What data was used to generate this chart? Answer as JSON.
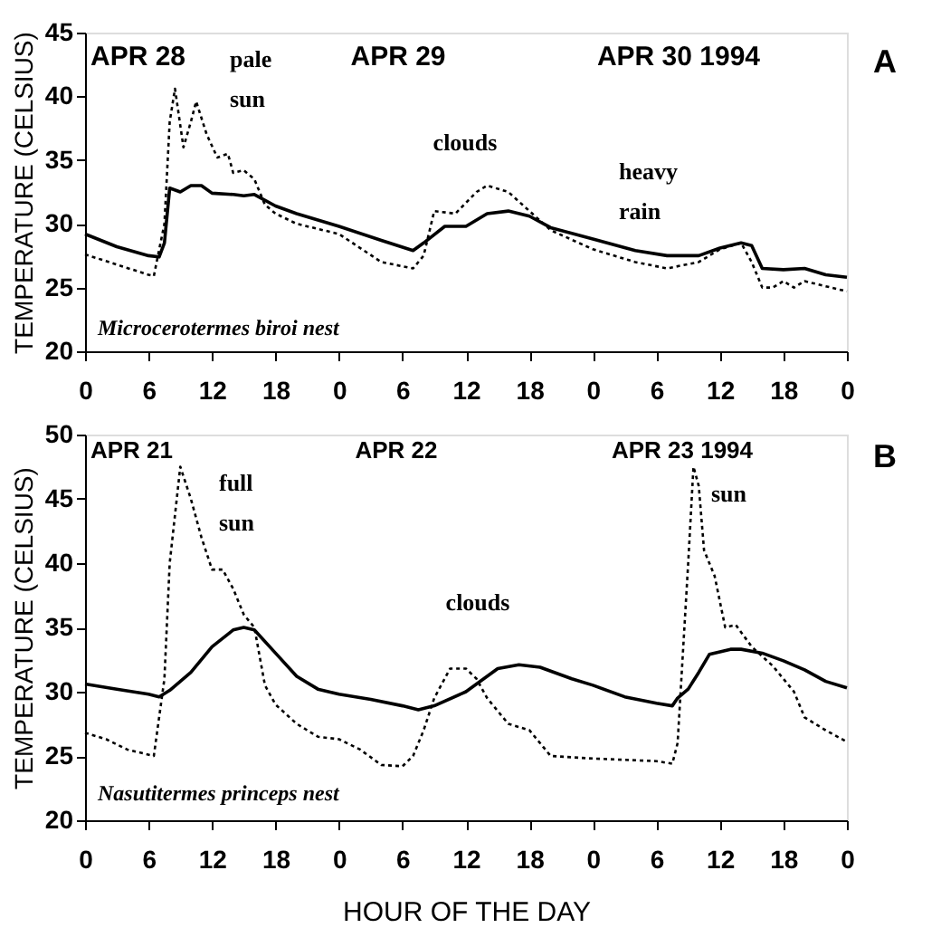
{
  "chart_data": [
    {
      "type": "line",
      "ylabel": "TEMPERATURE (CELSIUS)",
      "xlim": [
        "1994-04-28T00:00",
        "1994-05-01T00:00"
      ],
      "ylim": [
        20,
        45
      ],
      "xticks": [
        {
          "value": "1994-04-28T00:00",
          "label": "0"
        },
        {
          "value": "1994-04-28T06:00",
          "label": "6"
        },
        {
          "value": "1994-04-28T12:00",
          "label": "12"
        },
        {
          "value": "1994-04-28T18:00",
          "label": "18"
        },
        {
          "value": "1994-04-29T00:00",
          "label": "0"
        },
        {
          "value": "1994-04-29T06:00",
          "label": "6"
        },
        {
          "value": "1994-04-29T12:00",
          "label": "12"
        },
        {
          "value": "1994-04-29T18:00",
          "label": "18"
        },
        {
          "value": "1994-04-30T00:00",
          "label": "0"
        },
        {
          "value": "1994-04-30T06:00",
          "label": "6"
        },
        {
          "value": "1994-04-30T12:00",
          "label": "12"
        },
        {
          "value": "1994-04-30T18:00",
          "label": "18"
        },
        {
          "value": "1994-05-01T00:00",
          "label": "0"
        }
      ],
      "yticks": [
        20,
        25,
        30,
        35,
        40,
        45
      ],
      "grid": false,
      "legend": false,
      "marker": "none",
      "annotations": [
        "APR 28",
        "APR 29",
        "APR 30 1994",
        "pale sun",
        "clouds",
        "heavy rain",
        "Microcerotermes biroi nest",
        "A"
      ],
      "series": [
        {
          "color": "#000000",
          "line_style": "solid",
          "x": [
            "1994-04-28T00:00",
            "1994-04-28T03:00",
            "1994-04-28T06:00",
            "1994-04-28T07:00",
            "1994-04-28T07:30",
            "1994-04-28T08:00",
            "1994-04-28T09:00",
            "1994-04-28T10:00",
            "1994-04-28T11:00",
            "1994-04-28T12:00",
            "1994-04-28T14:00",
            "1994-04-28T15:00",
            "1994-04-28T16:00",
            "1994-04-28T18:00",
            "1994-04-28T20:00",
            "1994-04-29T00:00",
            "1994-04-29T04:00",
            "1994-04-29T07:00",
            "1994-04-29T08:00",
            "1994-04-29T10:00",
            "1994-04-29T12:00",
            "1994-04-29T14:00",
            "1994-04-29T16:00",
            "1994-04-29T18:00",
            "1994-04-29T20:00",
            "1994-04-30T00:00",
            "1994-04-30T04:00",
            "1994-04-30T07:00",
            "1994-04-30T10:00",
            "1994-04-30T12:00",
            "1994-04-30T14:00",
            "1994-04-30T15:00",
            "1994-04-30T16:00",
            "1994-04-30T18:00",
            "1994-04-30T20:00",
            "1994-04-30T22:00",
            "1994-05-01T00:00"
          ],
          "values": [
            29.2,
            28.2,
            27.5,
            27.4,
            28.5,
            32.8,
            32.5,
            33,
            33,
            32.4,
            32.3,
            32.2,
            32.3,
            31.4,
            30.8,
            29.8,
            28.7,
            27.9,
            28.5,
            29.8,
            29.8,
            30.8,
            31,
            30.6,
            29.7,
            28.8,
            27.9,
            27.5,
            27.5,
            28.1,
            28.5,
            28.3,
            26.5,
            26.4,
            26.5,
            26.0,
            25.8
          ]
        },
        {
          "color": "#000000",
          "line_style": "dotted",
          "x": [
            "1994-04-28T00:00",
            "1994-04-28T03:00",
            "1994-04-28T06:00",
            "1994-04-28T06:30",
            "1994-04-28T07:30",
            "1994-04-28T08:00",
            "1994-04-28T08:30",
            "1994-04-28T09:18",
            "1994-04-28T10:00",
            "1994-04-28T10:30",
            "1994-04-28T11:30",
            "1994-04-28T12:30",
            "1994-04-28T13:30",
            "1994-04-28T14:00",
            "1994-04-28T15:00",
            "1994-04-28T16:00",
            "1994-04-28T17:00",
            "1994-04-28T18:00",
            "1994-04-28T20:00",
            "1994-04-29T00:00",
            "1994-04-29T04:00",
            "1994-04-29T07:00",
            "1994-04-29T08:00",
            "1994-04-29T09:00",
            "1994-04-29T11:00",
            "1994-04-29T13:00",
            "1994-04-29T14:00",
            "1994-04-29T16:00",
            "1994-04-29T18:00",
            "1994-04-29T20:00",
            "1994-04-30T00:00",
            "1994-04-30T04:00",
            "1994-04-30T07:00",
            "1994-04-30T10:00",
            "1994-04-30T12:00",
            "1994-04-30T14:00",
            "1994-04-30T15:00",
            "1994-04-30T16:00",
            "1994-04-30T17:00",
            "1994-04-30T18:00",
            "1994-04-30T19:00",
            "1994-04-30T20:00",
            "1994-05-01T00:00"
          ],
          "values": [
            27.6,
            26.8,
            26,
            25.9,
            30,
            38,
            40.6,
            36,
            38,
            39.6,
            37,
            35.2,
            35.5,
            34,
            34.2,
            33.5,
            31.5,
            30.8,
            30,
            29.2,
            27,
            26.5,
            27.5,
            31,
            30.8,
            32.5,
            33,
            32.5,
            31,
            29.5,
            28,
            27,
            26.5,
            27,
            28,
            28.5,
            27,
            25,
            25,
            25.5,
            25,
            25.5,
            24.7
          ]
        }
      ]
    },
    {
      "type": "line",
      "xlabel": "HOUR OF THE DAY",
      "ylabel": "TEMPERATURE (CELSIUS)",
      "xlim": [
        "1994-04-21T00:00",
        "1994-04-24T00:00"
      ],
      "ylim": [
        20,
        50
      ],
      "xticks": [
        {
          "value": "1994-04-21T00:00",
          "label": "0"
        },
        {
          "value": "1994-04-21T06:00",
          "label": "6"
        },
        {
          "value": "1994-04-21T12:00",
          "label": "12"
        },
        {
          "value": "1994-04-21T18:00",
          "label": "18"
        },
        {
          "value": "1994-04-22T00:00",
          "label": "0"
        },
        {
          "value": "1994-04-22T06:00",
          "label": "6"
        },
        {
          "value": "1994-04-22T12:00",
          "label": "12"
        },
        {
          "value": "1994-04-22T18:00",
          "label": "18"
        },
        {
          "value": "1994-04-23T00:00",
          "label": "0"
        },
        {
          "value": "1994-04-23T06:00",
          "label": "6"
        },
        {
          "value": "1994-04-23T12:00",
          "label": "12"
        },
        {
          "value": "1994-04-23T18:00",
          "label": "18"
        },
        {
          "value": "1994-04-24T00:00",
          "label": "0"
        }
      ],
      "yticks": [
        20,
        25,
        30,
        35,
        40,
        45,
        50
      ],
      "grid": false,
      "legend": false,
      "marker": "none",
      "annotations": [
        "APR 21",
        "APR 22",
        "APR 23 1994",
        "full sun",
        "clouds",
        "sun",
        "Nasutitermes princeps nest",
        "B"
      ],
      "series": [
        {
          "color": "#000000",
          "line_style": "solid",
          "x": [
            "1994-04-21T00:00",
            "1994-04-21T03:00",
            "1994-04-21T06:00",
            "1994-04-21T07:00",
            "1994-04-21T08:00",
            "1994-04-21T10:00",
            "1994-04-21T12:00",
            "1994-04-21T14:00",
            "1994-04-21T15:00",
            "1994-04-21T16:00",
            "1994-04-21T18:00",
            "1994-04-21T20:00",
            "1994-04-21T22:00",
            "1994-04-22T00:00",
            "1994-04-22T03:00",
            "1994-04-22T06:00",
            "1994-04-22T07:30",
            "1994-04-22T09:00",
            "1994-04-22T12:00",
            "1994-04-22T15:00",
            "1994-04-22T17:00",
            "1994-04-22T19:00",
            "1994-04-22T22:00",
            "1994-04-23T00:00",
            "1994-04-23T03:00",
            "1994-04-23T06:00",
            "1994-04-23T07:30",
            "1994-04-23T08:00",
            "1994-04-23T09:00",
            "1994-04-23T10:00",
            "1994-04-23T11:00",
            "1994-04-23T13:00",
            "1994-04-23T14:00",
            "1994-04-23T16:00",
            "1994-04-23T18:00",
            "1994-04-23T20:00",
            "1994-04-23T22:00",
            "1994-04-24T00:00"
          ],
          "values": [
            30.6,
            30.2,
            29.8,
            29.6,
            30.1,
            31.5,
            33.5,
            34.8,
            35,
            34.8,
            33,
            31.2,
            30.2,
            29.8,
            29.4,
            28.9,
            28.6,
            28.9,
            30,
            31.8,
            32.1,
            31.9,
            31,
            30.5,
            29.6,
            29.1,
            28.9,
            29.5,
            30.2,
            31.5,
            32.9,
            33.3,
            33.3,
            33,
            32.4,
            31.7,
            30.8,
            30.3
          ]
        },
        {
          "color": "#000000",
          "line_style": "dotted",
          "x": [
            "1994-04-21T00:00",
            "1994-04-21T02:00",
            "1994-04-21T04:00",
            "1994-04-21T06:30",
            "1994-04-21T07:30",
            "1994-04-21T08:00",
            "1994-04-21T09:00",
            "1994-04-21T10:00",
            "1994-04-21T11:00",
            "1994-04-21T12:00",
            "1994-04-21T13:00",
            "1994-04-21T14:00",
            "1994-04-21T15:00",
            "1994-04-21T16:00",
            "1994-04-21T17:00",
            "1994-04-21T18:00",
            "1994-04-21T20:00",
            "1994-04-21T22:00",
            "1994-04-22T00:00",
            "1994-04-22T02:00",
            "1994-04-22T04:00",
            "1994-04-22T06:00",
            "1994-04-22T07:00",
            "1994-04-22T08:00",
            "1994-04-22T09:00",
            "1994-04-22T10:30",
            "1994-04-22T12:00",
            "1994-04-22T13:00",
            "1994-04-22T14:00",
            "1994-04-22T16:00",
            "1994-04-22T18:00",
            "1994-04-22T20:00",
            "1994-04-23T00:00",
            "1994-04-23T06:00",
            "1994-04-23T07:30",
            "1994-04-23T08:00",
            "1994-04-23T09:00",
            "1994-04-23T09:30",
            "1994-04-23T10:00",
            "1994-04-23T10:30",
            "1994-04-23T11:30",
            "1994-04-23T12:30",
            "1994-04-23T13:30",
            "1994-04-23T15:00",
            "1994-04-23T17:00",
            "1994-04-23T19:00",
            "1994-04-23T20:00",
            "1994-04-23T22:00",
            "1994-04-24T00:00"
          ],
          "values": [
            26.8,
            26.3,
            25.5,
            25,
            31,
            40,
            47.5,
            45,
            42,
            39.5,
            39.5,
            38,
            36,
            35,
            30.5,
            29,
            27.5,
            26.5,
            26.3,
            25.5,
            24.3,
            24.2,
            25,
            27,
            29.5,
            31.8,
            31.8,
            31,
            29.5,
            27.5,
            27,
            25,
            24.8,
            24.6,
            24.4,
            26,
            40,
            47.5,
            46,
            41,
            39,
            35,
            35.2,
            33.5,
            32,
            30,
            28,
            27,
            26.1
          ]
        }
      ]
    }
  ]
}
